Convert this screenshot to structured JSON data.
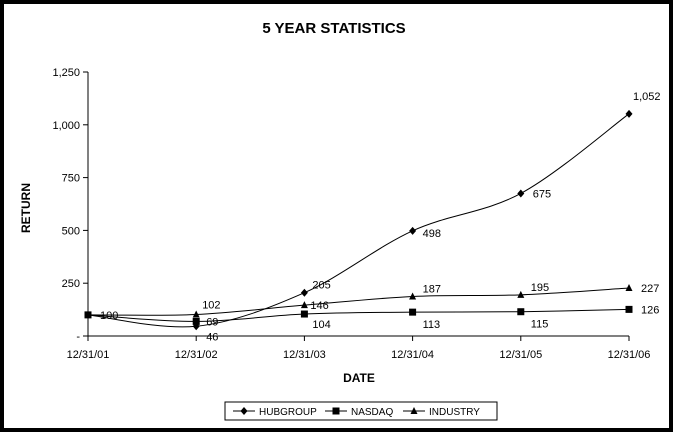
{
  "chart_data": {
    "type": "line",
    "title": "5 YEAR STATISTICS",
    "xlabel": "DATE",
    "ylabel": "RETURN",
    "categories": [
      "12/31/01",
      "12/31/02",
      "12/31/03",
      "12/31/04",
      "12/31/05",
      "12/31/06"
    ],
    "ylim": [
      0,
      1250
    ],
    "yticks": [
      {
        "value": 0,
        "label": "-"
      },
      {
        "value": 250,
        "label": "250"
      },
      {
        "value": 500,
        "label": "500"
      },
      {
        "value": 750,
        "label": "750"
      },
      {
        "value": 1000,
        "label": "1,000"
      },
      {
        "value": 1250,
        "label": "1,250"
      }
    ],
    "grid": false,
    "smoothed": true,
    "legend_position": "bottom",
    "series": [
      {
        "name": "HUBGROUP",
        "marker": "diamond",
        "values": [
          100,
          46,
          205,
          498,
          675,
          1052
        ],
        "labels": [
          "100",
          "46",
          "205",
          "498",
          "675",
          "1,052"
        ]
      },
      {
        "name": "NASDAQ",
        "marker": "square",
        "values": [
          100,
          69,
          104,
          113,
          115,
          126
        ],
        "labels": [
          "100",
          "69",
          "104",
          "113",
          "115",
          "126"
        ]
      },
      {
        "name": "INDUSTRY",
        "marker": "triangle",
        "values": [
          100,
          102,
          146,
          187,
          195,
          227
        ],
        "labels": [
          "100",
          "102",
          "146",
          "187",
          "195",
          "227"
        ]
      }
    ]
  }
}
